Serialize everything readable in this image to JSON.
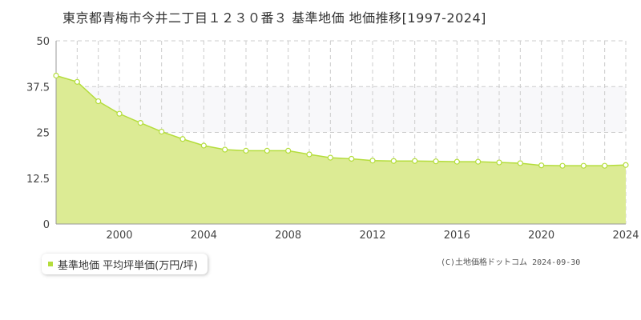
{
  "header": {
    "title": "東京都青梅市今井二丁目１２３０番３ 基準地価 地価推移[1997-2024]"
  },
  "legend": {
    "label": "基準地価 平均坪単価(万円/坪)"
  },
  "credit": {
    "text": "(C)土地価格ドットコム 2024-09-30"
  },
  "colors": {
    "fill": "#dceb94",
    "line": "#b4dd3c",
    "band": "#f8f8fa",
    "grid": "#cccccc"
  },
  "chart_data": {
    "type": "area",
    "x": [
      1997,
      1998,
      1999,
      2000,
      2001,
      2002,
      2003,
      2004,
      2005,
      2006,
      2007,
      2008,
      2009,
      2010,
      2011,
      2012,
      2013,
      2014,
      2015,
      2016,
      2017,
      2018,
      2019,
      2020,
      2021,
      2022,
      2023,
      2024
    ],
    "series": [
      {
        "name": "基準地価 平均坪単価(万円/坪)",
        "values": [
          40.5,
          38.8,
          33.5,
          30.1,
          27.6,
          25.2,
          23.2,
          21.4,
          20.3,
          20.0,
          20.0,
          20.0,
          19.0,
          18.1,
          17.8,
          17.3,
          17.2,
          17.2,
          17.1,
          17.0,
          17.0,
          16.8,
          16.6,
          16.0,
          15.9,
          15.9,
          15.9,
          16.1
        ]
      }
    ],
    "xticks": [
      "2000",
      "2004",
      "2008",
      "2012",
      "2016",
      "2020",
      "2024"
    ],
    "yticks": [
      "0",
      "12.5",
      "25",
      "37.5",
      "50"
    ],
    "xlim": [
      1997,
      2024
    ],
    "ylim": [
      0,
      50
    ]
  }
}
